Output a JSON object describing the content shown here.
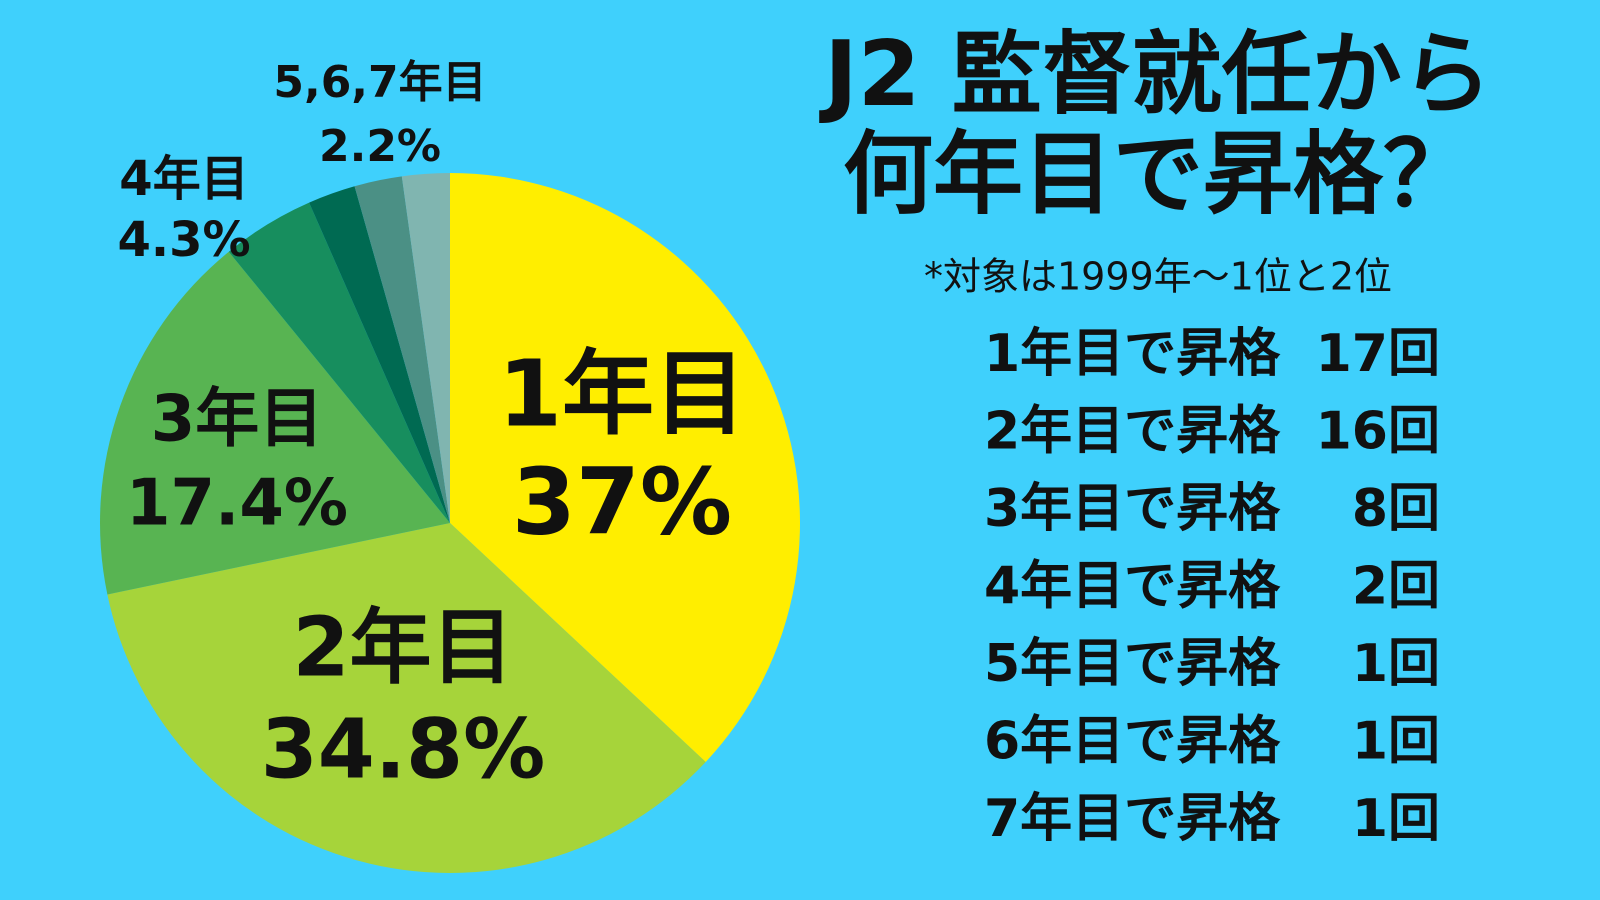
{
  "chart_data": {
    "type": "pie",
    "title": [
      "J2 監督就任から",
      "何年目で昇格？"
    ],
    "subtitle": "*対象は1999年〜1位と2位",
    "categories": [
      "1年目",
      "2年目",
      "3年目",
      "4年目",
      null,
      null,
      null
    ],
    "values": [
      37,
      34.8,
      17.4,
      4.3,
      2.2,
      2.2,
      2.2
    ],
    "value_labels": [
      "37%",
      "34.8%",
      "17.4%",
      "4.3%",
      null,
      null,
      null
    ],
    "colors": [
      "#ffee00",
      "#a6d43a",
      "#58b452",
      "#178e5e",
      "#006a52",
      "#4b9085",
      "#80b5b0"
    ],
    "group_label": "5,6,7年目",
    "group_value_label": "2.2%",
    "table": {
      "rows": [
        [
          "1年目で昇格",
          "17回"
        ],
        [
          "2年目で昇格",
          "16回"
        ],
        [
          "3年目で昇格",
          "8回"
        ],
        [
          "4年目で昇格",
          "2回"
        ],
        [
          "5年目で昇格",
          "1回"
        ],
        [
          "6年目で昇格",
          "1回"
        ],
        [
          "7年目で昇格",
          "1回"
        ]
      ]
    }
  }
}
